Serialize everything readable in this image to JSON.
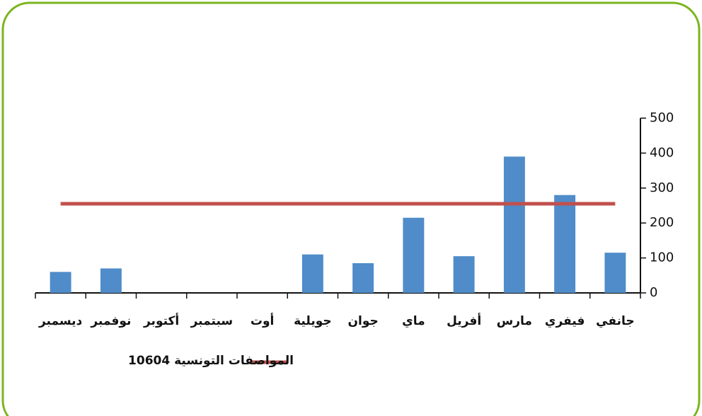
{
  "chart_data": {
    "type": "bar",
    "categories": [
      "جانفي",
      "فيفري",
      "مارس",
      "أفريل",
      "ماي",
      "جوان",
      "جويلية",
      "أوت",
      "سبتمبر",
      "أكتوبر",
      "نوفمبر",
      "ديسمبر"
    ],
    "values": [
      115,
      280,
      390,
      105,
      215,
      85,
      110,
      null,
      null,
      null,
      70,
      60
    ],
    "color": "#4f8cc9",
    "ylim": [
      0,
      500
    ],
    "yticks": [
      0,
      100,
      200,
      300,
      400,
      500
    ],
    "reference_line": {
      "name": "المواصفات التونسية 10604",
      "value": 255,
      "color": "#c0504d"
    },
    "category_direction": "right-to-left",
    "y_axis_side": "right",
    "grid": false
  }
}
